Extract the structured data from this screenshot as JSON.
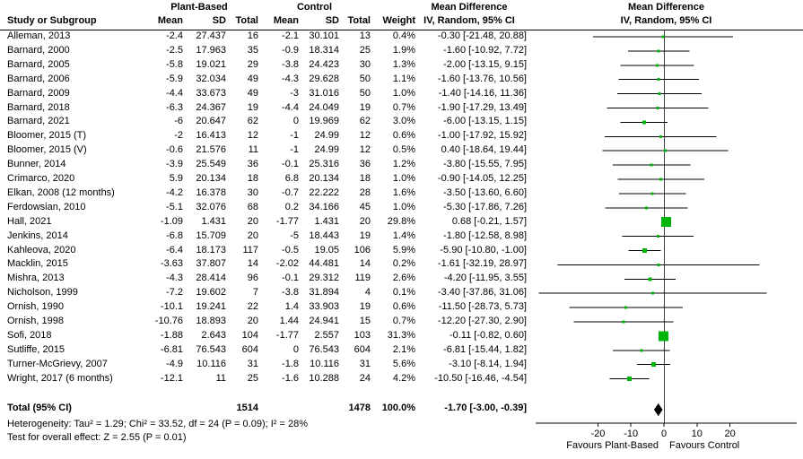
{
  "chart_data": {
    "type": "scatter",
    "variant": "forest-plot-meta-analysis",
    "columns": {
      "study": "Study or Subgroup",
      "group1": "Plant-Based",
      "group2": "Control",
      "mean": "Mean",
      "sd": "SD",
      "total": "Total",
      "weight": "Weight"
    },
    "title_left": {
      "line1": "Mean Difference",
      "line2": "IV, Random, 95% CI"
    },
    "title_right": {
      "line1": "Mean Difference",
      "line2": "IV, Random, 95% CI"
    },
    "rows": [
      {
        "cells": [
          "Alleman, 2013",
          "-2.4",
          "27.437",
          "16",
          "-2.1",
          "30.101",
          "13",
          "0.4%",
          "-0.30 [-21.48, 20.88]"
        ],
        "md": -0.3,
        "lo": -21.48,
        "hi": 20.88,
        "w": 0.4
      },
      {
        "cells": [
          "Barnard, 2000",
          "-2.5",
          "17.963",
          "35",
          "-0.9",
          "18.314",
          "25",
          "1.9%",
          "-1.60 [-10.92, 7.72]"
        ],
        "md": -1.6,
        "lo": -10.92,
        "hi": 7.72,
        "w": 1.9
      },
      {
        "cells": [
          "Barnard, 2005",
          "-5.8",
          "19.021",
          "29",
          "-3.8",
          "24.423",
          "30",
          "1.3%",
          "-2.00 [-13.15, 9.15]"
        ],
        "md": -2.0,
        "lo": -13.15,
        "hi": 9.15,
        "w": 1.3
      },
      {
        "cells": [
          "Barnard, 2006",
          "-5.9",
          "32.034",
          "49",
          "-4.3",
          "29.628",
          "50",
          "1.1%",
          "-1.60 [-13.76, 10.56]"
        ],
        "md": -1.6,
        "lo": -13.76,
        "hi": 10.56,
        "w": 1.1
      },
      {
        "cells": [
          "Barnard, 2009",
          "-4.4",
          "33.673",
          "49",
          "-3",
          "31.016",
          "50",
          "1.0%",
          "-1.40 [-14.16, 11.36]"
        ],
        "md": -1.4,
        "lo": -14.16,
        "hi": 11.36,
        "w": 1.0
      },
      {
        "cells": [
          "Barnard, 2018",
          "-6.3",
          "24.367",
          "19",
          "-4.4",
          "24.049",
          "19",
          "0.7%",
          "-1.90 [-17.29, 13.49]"
        ],
        "md": -1.9,
        "lo": -17.29,
        "hi": 13.49,
        "w": 0.7
      },
      {
        "cells": [
          "Barnard, 2021",
          "-6",
          "20.647",
          "62",
          "0",
          "19.969",
          "62",
          "3.0%",
          "-6.00 [-13.15, 1.15]"
        ],
        "md": -6.0,
        "lo": -13.15,
        "hi": 1.15,
        "w": 3.0
      },
      {
        "cells": [
          "Bloomer, 2015 (T)",
          "-2",
          "16.413",
          "12",
          "-1",
          "24.99",
          "12",
          "0.6%",
          "-1.00 [-17.92, 15.92]"
        ],
        "md": -1.0,
        "lo": -17.92,
        "hi": 15.92,
        "w": 0.6
      },
      {
        "cells": [
          "Bloomer, 2015 (V)",
          "-0.6",
          "21.576",
          "11",
          "-1",
          "24.99",
          "12",
          "0.5%",
          "0.40 [-18.64, 19.44]"
        ],
        "md": 0.4,
        "lo": -18.64,
        "hi": 19.44,
        "w": 0.5
      },
      {
        "cells": [
          "Bunner, 2014",
          "-3.9",
          "25.549",
          "36",
          "-0.1",
          "25.316",
          "36",
          "1.2%",
          "-3.80 [-15.55, 7.95]"
        ],
        "md": -3.8,
        "lo": -15.55,
        "hi": 7.95,
        "w": 1.2
      },
      {
        "cells": [
          "Crimarco, 2020",
          "5.9",
          "20.134",
          "18",
          "6.8",
          "20.134",
          "18",
          "1.0%",
          "-0.90 [-14.05, 12.25]"
        ],
        "md": -0.9,
        "lo": -14.05,
        "hi": 12.25,
        "w": 1.0
      },
      {
        "cells": [
          "Elkan, 2008 (12 months)",
          "-4.2",
          "16.378",
          "30",
          "-0.7",
          "22.222",
          "28",
          "1.6%",
          "-3.50 [-13.60, 6.60]"
        ],
        "md": -3.5,
        "lo": -13.6,
        "hi": 6.6,
        "w": 1.6
      },
      {
        "cells": [
          "Ferdowsian, 2010",
          "-5.1",
          "32.076",
          "68",
          "0.2",
          "34.166",
          "45",
          "1.0%",
          "-5.30 [-17.86, 7.26]"
        ],
        "md": -5.3,
        "lo": -17.86,
        "hi": 7.26,
        "w": 1.0
      },
      {
        "cells": [
          "Hall, 2021",
          "-1.09",
          "1.431",
          "20",
          "-1.77",
          "1.431",
          "20",
          "29.8%",
          "0.68 [-0.21, 1.57]"
        ],
        "md": 0.68,
        "lo": -0.21,
        "hi": 1.57,
        "w": 29.8
      },
      {
        "cells": [
          "Jenkins, 2014",
          "-6.8",
          "15.709",
          "20",
          "-5",
          "18.443",
          "19",
          "1.4%",
          "-1.80 [-12.58, 8.98]"
        ],
        "md": -1.8,
        "lo": -12.58,
        "hi": 8.98,
        "w": 1.4
      },
      {
        "cells": [
          "Kahleova, 2020",
          "-6.4",
          "18.173",
          "117",
          "-0.5",
          "19.05",
          "106",
          "5.9%",
          "-5.90 [-10.80, -1.00]"
        ],
        "md": -5.9,
        "lo": -10.8,
        "hi": -1.0,
        "w": 5.9
      },
      {
        "cells": [
          "Macklin, 2015",
          "-3.63",
          "37.807",
          "14",
          "-2.02",
          "44.481",
          "14",
          "0.2%",
          "-1.61 [-32.19, 28.97]"
        ],
        "md": -1.61,
        "lo": -32.19,
        "hi": 28.97,
        "w": 0.2
      },
      {
        "cells": [
          "Mishra, 2013",
          "-4.3",
          "28.414",
          "96",
          "-0.1",
          "29.312",
          "119",
          "2.6%",
          "-4.20 [-11.95, 3.55]"
        ],
        "md": -4.2,
        "lo": -11.95,
        "hi": 3.55,
        "w": 2.6
      },
      {
        "cells": [
          "Nicholson, 1999",
          "-7.2",
          "19.602",
          "7",
          "-3.8",
          "31.894",
          "4",
          "0.1%",
          "-3.40 [-37.86, 31.06]"
        ],
        "md": -3.4,
        "lo": -37.86,
        "hi": 31.06,
        "w": 0.1
      },
      {
        "cells": [
          "Ornish, 1990",
          "-10.1",
          "19.241",
          "22",
          "1.4",
          "33.903",
          "19",
          "0.6%",
          "-11.50 [-28.73, 5.73]"
        ],
        "md": -11.5,
        "lo": -28.73,
        "hi": 5.73,
        "w": 0.6
      },
      {
        "cells": [
          "Ornish, 1998",
          "-10.76",
          "18.893",
          "20",
          "1.44",
          "24.941",
          "15",
          "0.7%",
          "-12.20 [-27.30, 2.90]"
        ],
        "md": -12.2,
        "lo": -27.3,
        "hi": 2.9,
        "w": 0.7
      },
      {
        "cells": [
          "Sofi, 2018",
          "-1.88",
          "2.643",
          "104",
          "-1.77",
          "2.557",
          "103",
          "31.3%",
          "-0.11 [-0.82, 0.60]"
        ],
        "md": -0.11,
        "lo": -0.82,
        "hi": 0.6,
        "w": 31.3
      },
      {
        "cells": [
          "Sutliffe, 2015",
          "-6.81",
          "76.543",
          "604",
          "0",
          "76.543",
          "604",
          "2.1%",
          "-6.81 [-15.44, 1.82]"
        ],
        "md": -6.81,
        "lo": -15.44,
        "hi": 1.82,
        "w": 2.1
      },
      {
        "cells": [
          "Turner-McGrievy, 2007",
          "-4.9",
          "10.116",
          "31",
          "-1.8",
          "10.116",
          "31",
          "5.6%",
          "-3.10 [-8.14, 1.94]"
        ],
        "md": -3.1,
        "lo": -8.14,
        "hi": 1.94,
        "w": 5.6
      },
      {
        "cells": [
          "Wright, 2017 (6 months)",
          "-12.1",
          "11",
          "25",
          "-1.6",
          "10.288",
          "24",
          "4.2%",
          "-10.50 [-16.46, -4.54]"
        ],
        "md": -10.5,
        "lo": -16.46,
        "hi": -4.54,
        "w": 4.2
      }
    ],
    "total_row": {
      "label": "Total (95% CI)",
      "total1": "1514",
      "total2": "1478",
      "weight": "100.0%",
      "ci": "-1.70 [-3.00, -0.39]",
      "md": -1.7,
      "lo": -3.0,
      "hi": -0.39
    },
    "footnotes": {
      "heterogeneity": "Heterogeneity: Tau² = 1.29; Chi² = 33.52, df = 24 (P = 0.09); I² = 28%",
      "overall_effect": "Test for overall effect: Z = 2.55 (P = 0.01)"
    },
    "axis": {
      "ticks": [
        -20,
        -10,
        0,
        10,
        20
      ],
      "xlim": [
        -38.9,
        40.2
      ],
      "favours_left": "Favours Plant-Based",
      "favours_right": "Favours Control"
    },
    "colors": {
      "marker": "#00b50a",
      "diamond": "#000000",
      "line": "#000000",
      "zero_line": "#404040"
    }
  }
}
